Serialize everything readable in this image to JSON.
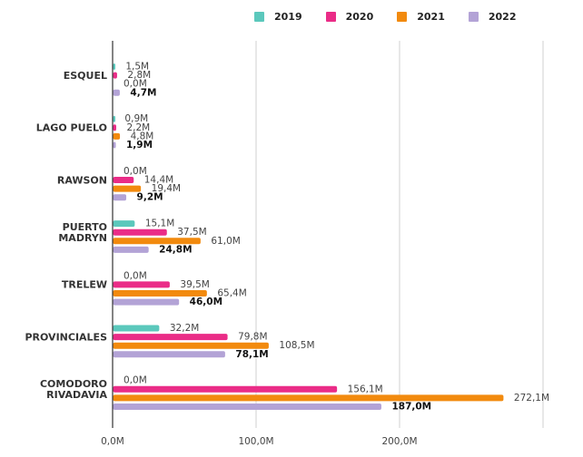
{
  "chart_data": {
    "type": "bar",
    "orientation": "horizontal",
    "title": "",
    "xlabel": "",
    "ylabel": "",
    "xlim": [
      0,
      300
    ],
    "grid": true,
    "legend_position": "top",
    "categories": [
      [
        "ESQUEL"
      ],
      [
        "LAGO PUELO"
      ],
      [
        "RAWSON"
      ],
      [
        "PUERTO",
        "MADRYN"
      ],
      [
        "TRELEW"
      ],
      [
        "PROVINCIALES"
      ],
      [
        "COMODORO",
        "RIVADAVIA"
      ]
    ],
    "x_ticks": [
      {
        "value": 0,
        "label": "0,0M"
      },
      {
        "value": 100,
        "label": "100,0M"
      },
      {
        "value": 200,
        "label": "200,0M"
      },
      {
        "value": 300,
        "label": ""
      }
    ],
    "series": [
      {
        "name": "2019",
        "color": "#5bc8bc",
        "values": [
          1.5,
          0.9,
          0.0,
          15.1,
          0.0,
          32.2,
          0.0
        ],
        "labels": [
          "1,5M",
          "0,9M",
          "0,0M",
          "15,1M",
          "0,0M",
          "32,2M",
          "0,0M"
        ],
        "bold": false
      },
      {
        "name": "2020",
        "color": "#ea2c87",
        "values": [
          2.8,
          2.2,
          14.4,
          37.5,
          39.5,
          79.8,
          156.1
        ],
        "labels": [
          "2,8M",
          "2,2M",
          "14,4M",
          "37,5M",
          "39,5M",
          "79,8M",
          "156,1M"
        ],
        "bold": false
      },
      {
        "name": "2021",
        "color": "#f28a0e",
        "values": [
          0.0,
          4.8,
          19.4,
          61.0,
          65.4,
          108.5,
          272.1
        ],
        "labels": [
          "0,0M",
          "4,8M",
          "19,4M",
          "61,0M",
          "65,4M",
          "108,5M",
          "272,1M"
        ],
        "bold": false
      },
      {
        "name": "2022",
        "color": "#b3a3d6",
        "values": [
          4.7,
          1.9,
          9.2,
          24.8,
          46.0,
          78.1,
          187.0
        ],
        "labels": [
          "4,7M",
          "1,9M",
          "9,2M",
          "24,8M",
          "46,0M",
          "78,1M",
          "187,0M"
        ],
        "bold": true
      }
    ]
  }
}
